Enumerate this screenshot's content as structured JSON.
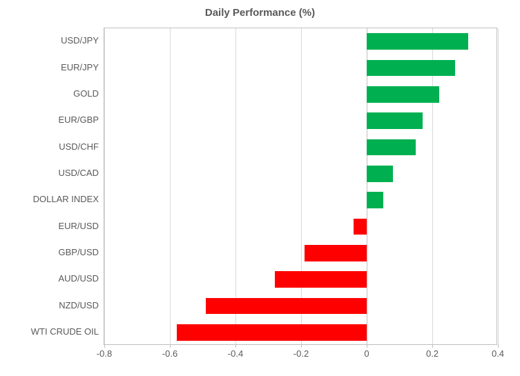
{
  "chart": {
    "type": "bar-horizontal",
    "title": "Daily Performance (%)",
    "title_fontsize": 15,
    "title_color": "#595959",
    "background_color": "#ffffff",
    "plot_border_color": "#bfbfbf",
    "grid_color": "#d9d9d9",
    "axis_label_color": "#595959",
    "axis_label_fontsize": 13,
    "positive_color": "#00b050",
    "negative_color": "#ff0000",
    "xlim": [
      -0.8,
      0.4
    ],
    "xticks": [
      -0.8,
      -0.6,
      -0.4,
      -0.2,
      0,
      0.2,
      0.4
    ],
    "xtick_labels": [
      "-0.8",
      "-0.6",
      "-0.4",
      "-0.2",
      "0",
      "0.2",
      "0.4"
    ],
    "bar_height_ratio": 0.62,
    "categories": [
      "USD/JPY",
      "EUR/JPY",
      "GOLD",
      "EUR/GBP",
      "USD/CHF",
      "USD/CAD",
      "DOLLAR INDEX",
      "EUR/USD",
      "GBP/USD",
      "AUD/USD",
      "NZD/USD",
      "WTI CRUDE OIL"
    ],
    "values": [
      0.31,
      0.27,
      0.22,
      0.17,
      0.15,
      0.08,
      0.05,
      -0.04,
      -0.19,
      -0.28,
      -0.49,
      -0.58
    ]
  }
}
